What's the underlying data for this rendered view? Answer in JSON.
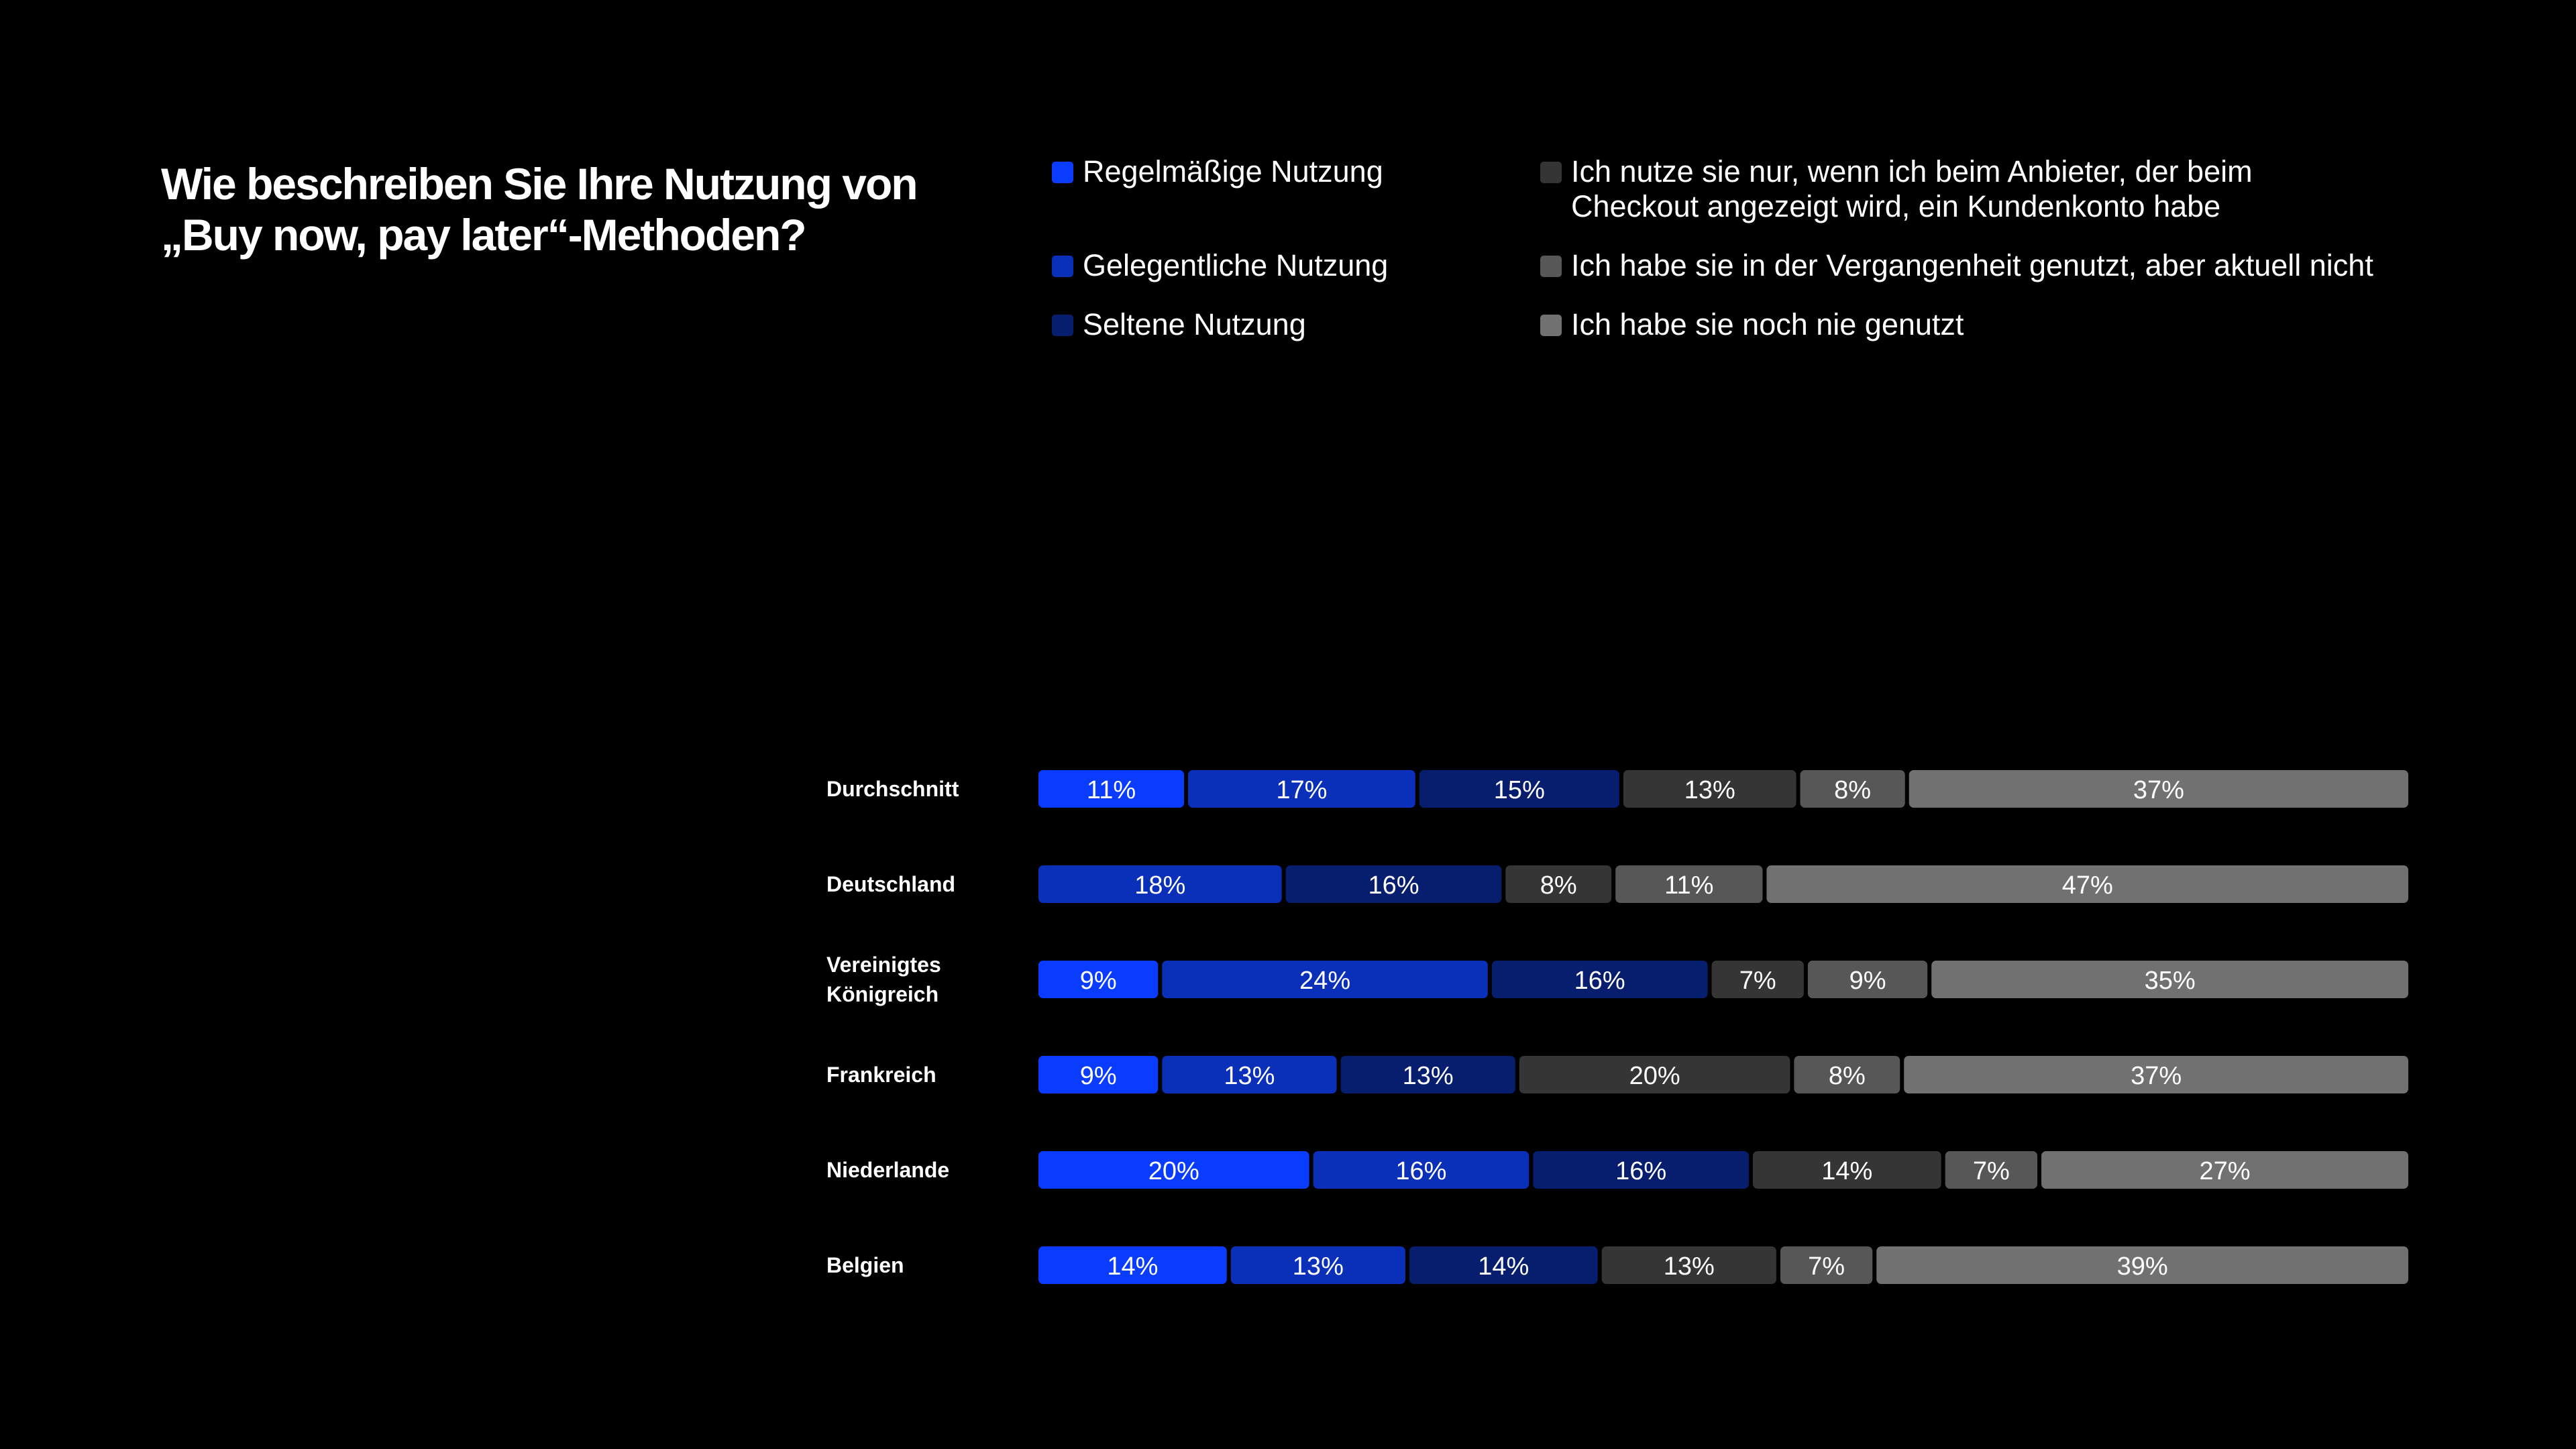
{
  "title": "Wie beschreiben Sie Ihre Nutzung von\n„Buy now, pay later“-Methoden?",
  "colors": {
    "background": "#000000",
    "text": "#ffffff"
  },
  "chart_data": {
    "type": "bar",
    "orientation": "horizontal",
    "stacked": true,
    "title": "Wie beschreiben Sie Ihre Nutzung von „Buy now, pay later“-Methoden?",
    "legend_position": "top",
    "grid": false,
    "categories": [
      "Durchschnitt",
      "Deutschland",
      "Vereinigtes\nKönigreich",
      "Frankreich",
      "Niederlande",
      "Belgien"
    ],
    "series": [
      {
        "name": "Regelmäßige Nutzung",
        "color": "#0a3cff",
        "values": [
          11,
          0,
          9,
          9,
          20,
          14
        ]
      },
      {
        "name": "Gelegentliche Nutzung",
        "color": "#0a2fb8",
        "values": [
          17,
          18,
          24,
          13,
          16,
          13
        ]
      },
      {
        "name": "Seltene Nutzung",
        "color": "#071d6e",
        "values": [
          15,
          16,
          16,
          13,
          16,
          14
        ]
      },
      {
        "name": "Ich nutze sie nur, wenn ich beim Anbieter, der beim\nCheckout angezeigt wird, ein Kundenkonto habe",
        "color": "#353535",
        "values": [
          13,
          8,
          7,
          20,
          14,
          13
        ]
      },
      {
        "name": "Ich habe sie in der Vergangenheit genutzt, aber aktuell nicht",
        "color": "#575757",
        "values": [
          8,
          11,
          9,
          8,
          7,
          7
        ]
      },
      {
        "name": "Ich habe sie noch nie genutzt",
        "color": "#717171",
        "values": [
          37,
          47,
          35,
          37,
          27,
          39
        ]
      }
    ],
    "value_labels": [
      [
        "11%",
        "17%",
        "15%",
        "13%",
        "8%",
        "37%"
      ],
      [
        "",
        "18%",
        "16%",
        "8%",
        "11%",
        "47%"
      ],
      [
        "9%",
        "24%",
        "16%",
        "7%",
        "9%",
        "35%"
      ],
      [
        "9%",
        "13%",
        "13%",
        "20%",
        "8%",
        "37%"
      ],
      [
        "20%",
        "16%",
        "16%",
        "14%",
        "7%",
        "27%"
      ],
      [
        "14%",
        "13%",
        "14%",
        "13%",
        "7%",
        "39%"
      ]
    ]
  }
}
